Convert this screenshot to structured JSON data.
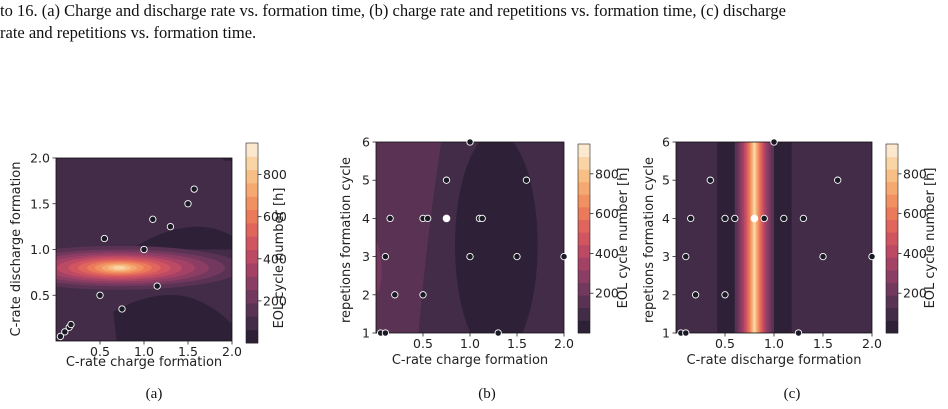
{
  "caption": {
    "line1": "to 16. (a) Charge and discharge rate vs. formation time, (b) charge rate and repetitions vs. formation time, (c) discharge",
    "line2": "rate and repetitions vs. formation time."
  },
  "colors": {
    "levels": [
      "#2e2137",
      "#432c48",
      "#5a3354",
      "#72385d",
      "#8b3d63",
      "#a44266",
      "#bc4a65",
      "#d15561",
      "#e0655c",
      "#eb7a5b",
      "#f19162",
      "#f5a86f",
      "#f7bf85",
      "#f9d5a6",
      "#fbe8cf"
    ]
  },
  "chart_data": [
    {
      "id": "a",
      "type": "contour",
      "sublabel": "(a)",
      "xlabel": "C-rate charge formation",
      "ylabel": "C-rate discharge formation",
      "colorbar_label": "EOL cycle number [h]",
      "xlim": [
        0.0,
        2.0
      ],
      "ylim": [
        0.0,
        2.0
      ],
      "xticks": [
        0.5,
        1.0,
        1.5,
        2.0
      ],
      "xtick_labels": [
        "0.5",
        "1.0",
        "1.5",
        "2.0"
      ],
      "yticks": [
        0.5,
        1.0,
        1.5,
        2.0
      ],
      "ytick_labels": [
        "0.5",
        "1.0",
        "1.5",
        "2.0"
      ],
      "cbar_ticks": [
        200,
        400,
        600,
        800
      ],
      "cbar_tick_labels": [
        "200",
        "400",
        "600",
        "800"
      ],
      "cbar_range": [
        0,
        950
      ],
      "points": [
        [
          0.05,
          0.05
        ],
        [
          0.1,
          0.1
        ],
        [
          0.15,
          0.15
        ],
        [
          0.17,
          0.18
        ],
        [
          0.5,
          0.5
        ],
        [
          0.55,
          1.12
        ],
        [
          0.75,
          0.35
        ],
        [
          1.0,
          1.0
        ],
        [
          1.1,
          1.33
        ],
        [
          1.15,
          0.6
        ],
        [
          1.3,
          1.25
        ],
        [
          1.5,
          1.5
        ],
        [
          1.57,
          1.66
        ]
      ],
      "highlight": []
    },
    {
      "id": "b",
      "type": "contour",
      "sublabel": "(b)",
      "xlabel": "C-rate charge formation",
      "ylabel": "repetions formation cycle",
      "colorbar_label": "EOL cycle number [h]",
      "xlim": [
        0.0,
        2.0
      ],
      "ylim": [
        1,
        6
      ],
      "xticks": [
        0.5,
        1.0,
        1.5,
        2.0
      ],
      "xtick_labels": [
        "0.5",
        "1.0",
        "1.5",
        "2.0"
      ],
      "yticks": [
        1,
        2,
        3,
        4,
        5,
        6
      ],
      "ytick_labels": [
        "1",
        "2",
        "3",
        "4",
        "5",
        "6"
      ],
      "cbar_ticks": [
        200,
        400,
        600,
        800
      ],
      "cbar_tick_labels": [
        "200",
        "400",
        "600",
        "800"
      ],
      "cbar_range": [
        0,
        950
      ],
      "points": [
        [
          0.05,
          1
        ],
        [
          0.1,
          1
        ],
        [
          0.1,
          3
        ],
        [
          0.15,
          4
        ],
        [
          0.2,
          2
        ],
        [
          0.5,
          2
        ],
        [
          0.5,
          4
        ],
        [
          0.55,
          4
        ],
        [
          0.75,
          5
        ],
        [
          1.0,
          6
        ],
        [
          1.0,
          3
        ],
        [
          1.1,
          4
        ],
        [
          1.13,
          4
        ],
        [
          1.3,
          1
        ],
        [
          1.5,
          3
        ],
        [
          1.6,
          5
        ],
        [
          2.0,
          3
        ]
      ],
      "highlight": [
        [
          0.75,
          4
        ]
      ]
    },
    {
      "id": "c",
      "type": "contour",
      "sublabel": "(c)",
      "xlabel": "C-rate discharge formation",
      "ylabel": "repetions formation cycle",
      "colorbar_label": "EOL cycle number [h]",
      "xlim": [
        0.0,
        2.0
      ],
      "ylim": [
        1,
        6
      ],
      "xticks": [
        0.5,
        1.0,
        1.5,
        2.0
      ],
      "xtick_labels": [
        "0.5",
        "1.0",
        "1.5",
        "2.0"
      ],
      "yticks": [
        1,
        2,
        3,
        4,
        5,
        6
      ],
      "ytick_labels": [
        "1",
        "2",
        "3",
        "4",
        "5",
        "6"
      ],
      "cbar_ticks": [
        200,
        400,
        600,
        800
      ],
      "cbar_tick_labels": [
        "200",
        "400",
        "600",
        "800"
      ],
      "cbar_range": [
        0,
        950
      ],
      "points": [
        [
          0.05,
          1
        ],
        [
          0.1,
          1
        ],
        [
          0.1,
          3
        ],
        [
          0.15,
          4
        ],
        [
          0.2,
          2
        ],
        [
          0.35,
          5
        ],
        [
          0.5,
          2
        ],
        [
          0.5,
          4
        ],
        [
          0.6,
          4
        ],
        [
          0.9,
          4
        ],
        [
          1.0,
          6
        ],
        [
          1.1,
          4
        ],
        [
          1.25,
          1
        ],
        [
          1.3,
          4
        ],
        [
          1.5,
          3
        ],
        [
          1.65,
          5
        ],
        [
          2.0,
          3
        ]
      ],
      "highlight": [
        [
          0.8,
          4
        ]
      ]
    }
  ]
}
